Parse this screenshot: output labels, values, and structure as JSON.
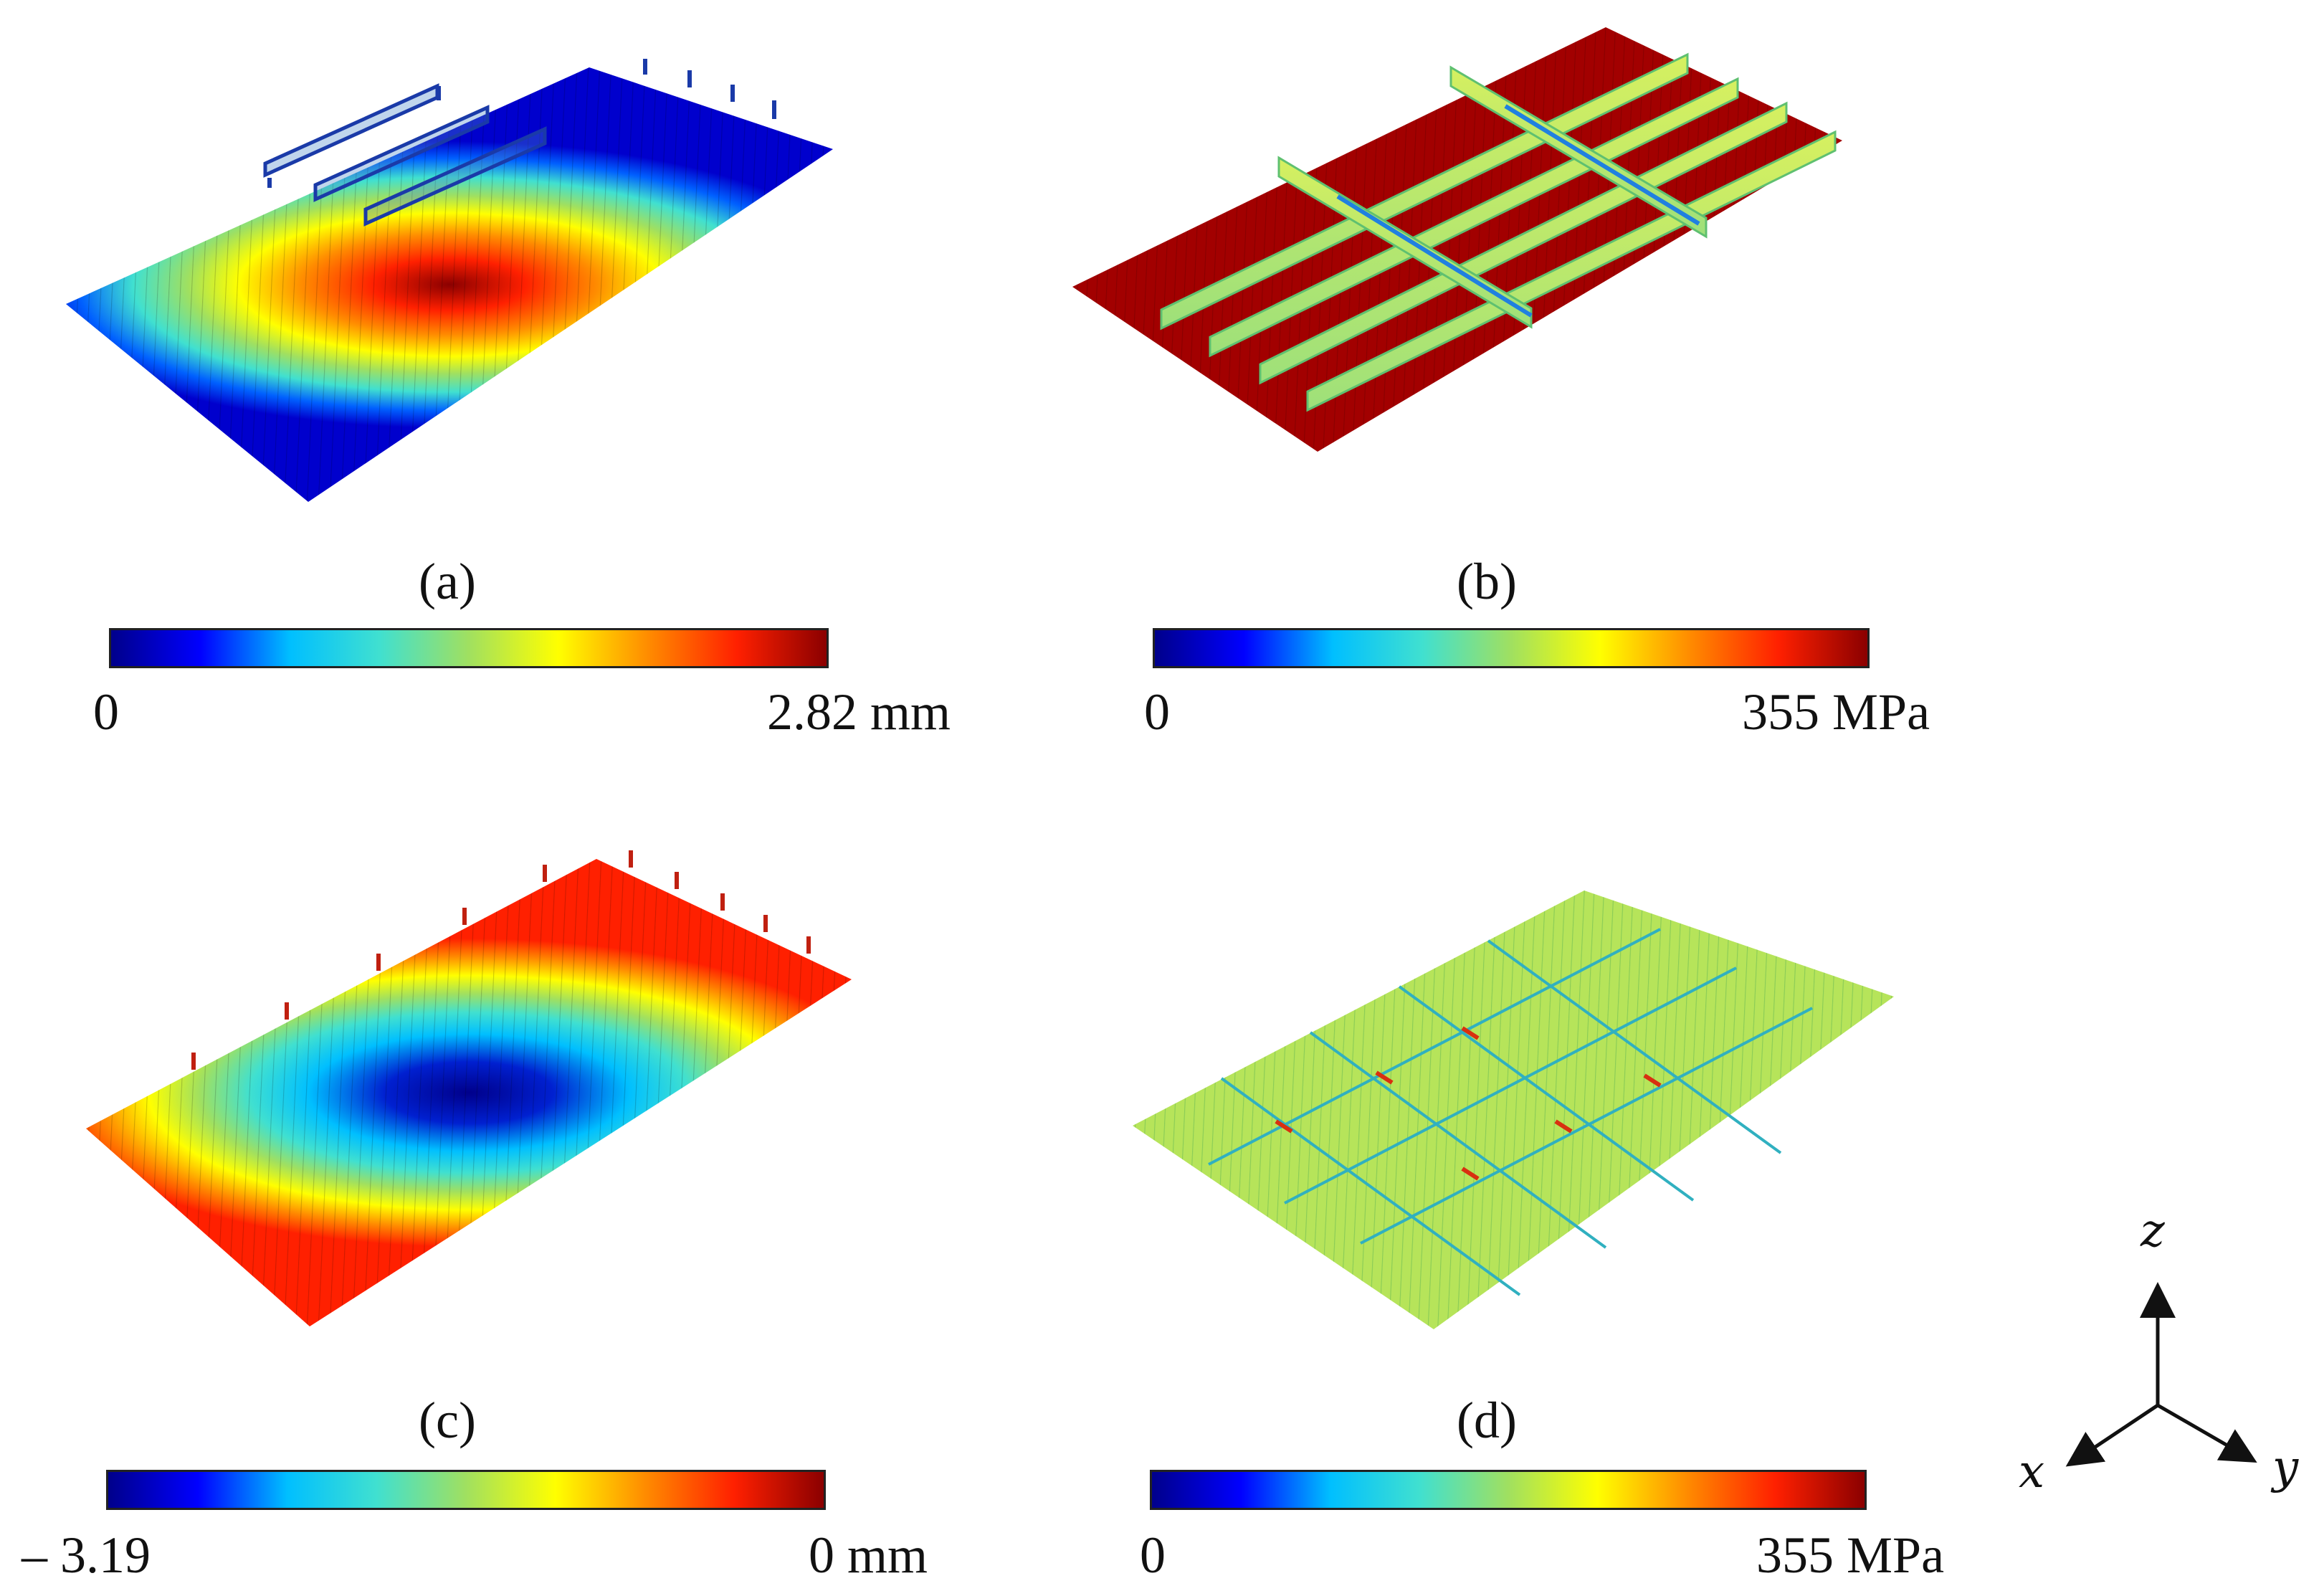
{
  "colormap": [
    "#00008b",
    "#0000ff",
    "#00bfff",
    "#40e0d0",
    "#a0e060",
    "#ffff00",
    "#ff8c00",
    "#ff2000",
    "#8b0000"
  ],
  "panels": [
    {
      "id": "a",
      "caption": "(a)",
      "colorbar": {
        "min_label": "0",
        "max_label": "2.82 mm"
      },
      "field": "displacement-peak-center"
    },
    {
      "id": "b",
      "caption": "(b)",
      "colorbar": {
        "min_label": "0",
        "max_label": "355 MPa"
      },
      "field": "stress-plate-yielded"
    },
    {
      "id": "c",
      "caption": "(c)",
      "colorbar": {
        "min_label": "– 3.19",
        "max_label": "0 mm"
      },
      "field": "displacement-trough-center"
    },
    {
      "id": "d",
      "caption": "(d)",
      "colorbar": {
        "min_label": "0",
        "max_label": "355 MPa"
      },
      "field": "stress-uniform-mid"
    }
  ],
  "axes": {
    "z": "z",
    "x": "x",
    "y": "y"
  }
}
